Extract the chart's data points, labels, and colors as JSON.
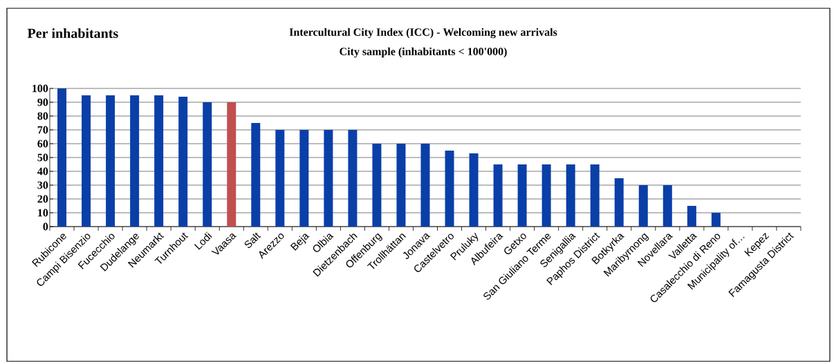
{
  "chart_data": {
    "type": "bar",
    "title": "Intercultural City Index (ICC) - Welcoming new arrivals",
    "subtitle": "City sample (inhabitants < 100'000)",
    "annotations": [
      "Per inhabitants"
    ],
    "categories": [
      "Rubicone",
      "Campi Bisenzio",
      "Fucecchio",
      "Dudelange",
      "Neumarkt",
      "Turnhout",
      "Lodi",
      "Vaasa",
      "Salt",
      "Arezzo",
      "Beja",
      "Olbia",
      "Dietzenbach",
      "Offenburg",
      "Trollhättan",
      "Jonava",
      "Castelvetro",
      "Pruluky",
      "Albufeira",
      "Getxo",
      "San Giuliano Terme",
      "Senigallia",
      "Paphos District",
      "Botkyrka",
      "Maribyrnong",
      "Novellara",
      "Valletta",
      "Casalecchio di Reno",
      "Municipality of…",
      "Kepez",
      "Famagusta District"
    ],
    "values": [
      100,
      95,
      95,
      95,
      95,
      94,
      90,
      90,
      75,
      70,
      70,
      70,
      70,
      60,
      60,
      60,
      55,
      53,
      45,
      45,
      45,
      45,
      45,
      35,
      30,
      30,
      15,
      10,
      0,
      0,
      0
    ],
    "colors": [
      "#0a3fa8",
      "#0a3fa8",
      "#0a3fa8",
      "#0a3fa8",
      "#0a3fa8",
      "#0a3fa8",
      "#0a3fa8",
      "#c0504d",
      "#0a3fa8",
      "#0a3fa8",
      "#0a3fa8",
      "#0a3fa8",
      "#0a3fa8",
      "#0a3fa8",
      "#0a3fa8",
      "#0a3fa8",
      "#0a3fa8",
      "#0a3fa8",
      "#0a3fa8",
      "#0a3fa8",
      "#0a3fa8",
      "#0a3fa8",
      "#0a3fa8",
      "#0a3fa8",
      "#0a3fa8",
      "#0a3fa8",
      "#0a3fa8",
      "#0a3fa8",
      "#0a3fa8",
      "#0a3fa8",
      "#0a3fa8"
    ],
    "ylim": [
      0,
      100
    ],
    "yticks": [
      0,
      10,
      20,
      30,
      40,
      50,
      60,
      70,
      80,
      90,
      100
    ],
    "grid": "y"
  }
}
